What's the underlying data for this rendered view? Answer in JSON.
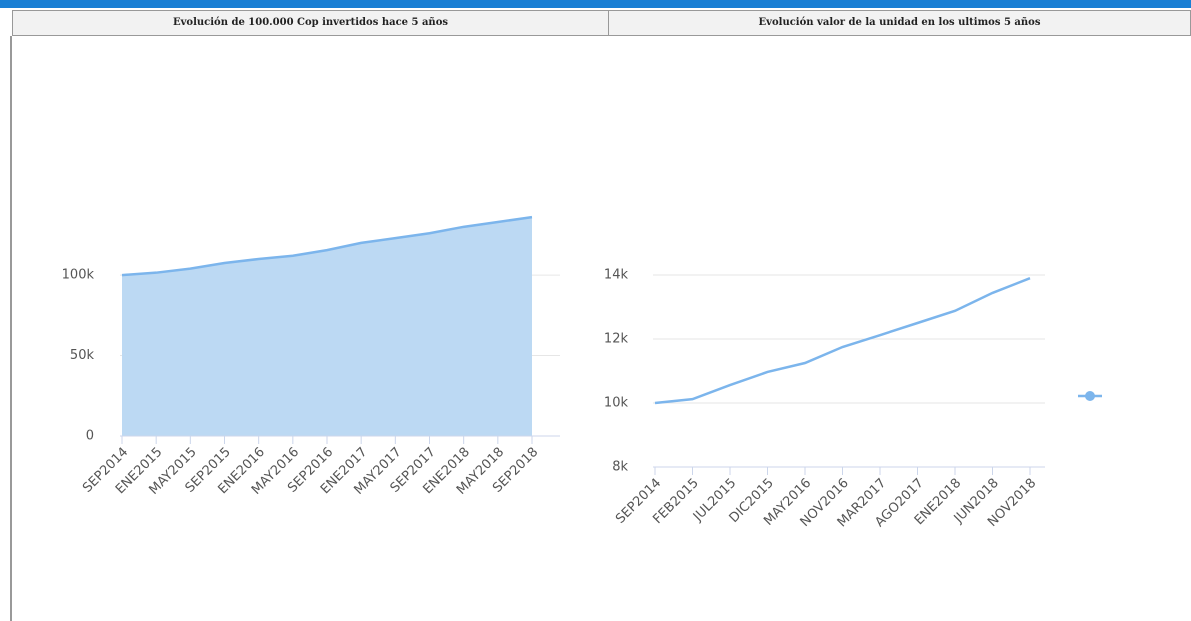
{
  "header": {
    "left": "Evolución de 100.000 Cop invertidos hace 5 años",
    "right": "Evolución valor de la unidad en los ultimos 5 años"
  },
  "chart_data": [
    {
      "type": "area",
      "color": "#7cb5ec",
      "fill": "#bcd9f3",
      "categories": [
        "SEP2014",
        "ENE2015",
        "MAY2015",
        "SEP2015",
        "ENE2016",
        "MAY2016",
        "SEP2016",
        "ENE2017",
        "MAY2017",
        "SEP2017",
        "ENE2018",
        "MAY2018",
        "SEP2018"
      ],
      "values": [
        100000,
        101500,
        104000,
        107500,
        110000,
        112000,
        115500,
        120000,
        123000,
        126000,
        130000,
        133000,
        136000
      ],
      "ylim": [
        0,
        133000
      ],
      "yticks": [
        0,
        {
          "value": 50000,
          "label": "50k"
        },
        {
          "value": 100000,
          "label": "100k"
        }
      ],
      "grid": true
    },
    {
      "type": "line",
      "color": "#7cb5ec",
      "categories": [
        "SEP2014",
        "FEB2015",
        "JUL2015",
        "DIC2015",
        "MAY2016",
        "NOV2016",
        "MAR2017",
        "AGO2017",
        "ENE2018",
        "JUN2018",
        "NOV2018"
      ],
      "values": [
        10000,
        10120,
        10560,
        10970,
        11250,
        11750,
        12120,
        12500,
        12880,
        13440,
        13900
      ],
      "ylim": [
        8000,
        14000
      ],
      "yticks": [
        {
          "value": 8000,
          "label": "8k"
        },
        {
          "value": 10000,
          "label": "10k"
        },
        {
          "value": 12000,
          "label": "12k"
        },
        {
          "value": 14000,
          "label": "14k"
        }
      ],
      "grid": true,
      "legend": "right"
    }
  ]
}
